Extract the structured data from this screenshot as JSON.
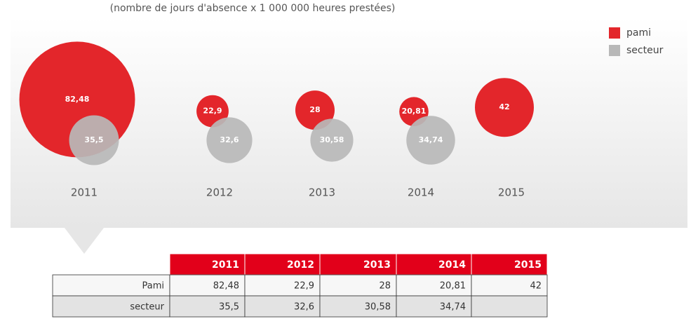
{
  "chart_data": {
    "type": "bubble",
    "subtitle": "(nombre de jours d'absence x 1 000 000 heures prestées)",
    "categories": [
      "2011",
      "2012",
      "2013",
      "2014",
      "2015"
    ],
    "series": [
      {
        "name": "pami",
        "color": "#e3262b",
        "values": [
          82.48,
          22.9,
          28,
          20.81,
          42
        ],
        "value_labels": [
          "82,48",
          "22,9",
          "28",
          "20,81",
          "42"
        ]
      },
      {
        "name": "secteur",
        "color": "#b8b8b8",
        "values": [
          35.5,
          32.6,
          30.58,
          34.74,
          null
        ],
        "value_labels": [
          "35,5",
          "32,6",
          "30,58",
          "34,74",
          null
        ]
      }
    ],
    "legend": "top-right"
  },
  "table": {
    "columns": [
      "2011",
      "2012",
      "2013",
      "2014",
      "2015"
    ],
    "rows": [
      {
        "label": "Pami",
        "cells": [
          "82,48",
          "22,9",
          "28",
          "20,81",
          "42"
        ]
      },
      {
        "label": "secteur",
        "cells": [
          "35,5",
          "32,6",
          "30,58",
          "34,74"
        ]
      }
    ]
  }
}
